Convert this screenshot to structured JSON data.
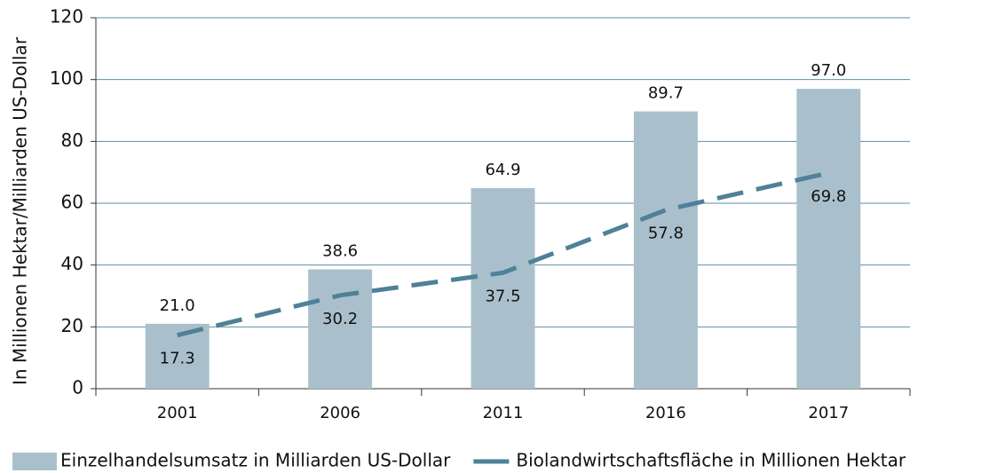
{
  "chart_data": {
    "type": "bar",
    "y_label": "In Millionen Hektar/Milliarden US-Dollar",
    "categories": [
      "2001",
      "2006",
      "2011",
      "2016",
      "2017"
    ],
    "series": [
      {
        "name": "Einzelhandelsumsatz in Milliarden US-Dollar",
        "type": "bar",
        "color": "#a9c0cc",
        "values": [
          21,
          38.6,
          64.9,
          89.7,
          97
        ],
        "value_labels": [
          "21.0",
          "38.6",
          "64.9",
          "89.7",
          "97.0"
        ]
      },
      {
        "name": "Biolandwirtschaftsfläche in Millionen Hektar",
        "type": "line",
        "color": "#4f8198",
        "values": [
          17.3,
          30.2,
          37.5,
          57.8,
          69.8
        ]
      }
    ],
    "ylim": [
      0,
      120
    ],
    "yticks": [
      0,
      20,
      40,
      60,
      80,
      100,
      120
    ],
    "grid": true,
    "legend": "bottom"
  }
}
